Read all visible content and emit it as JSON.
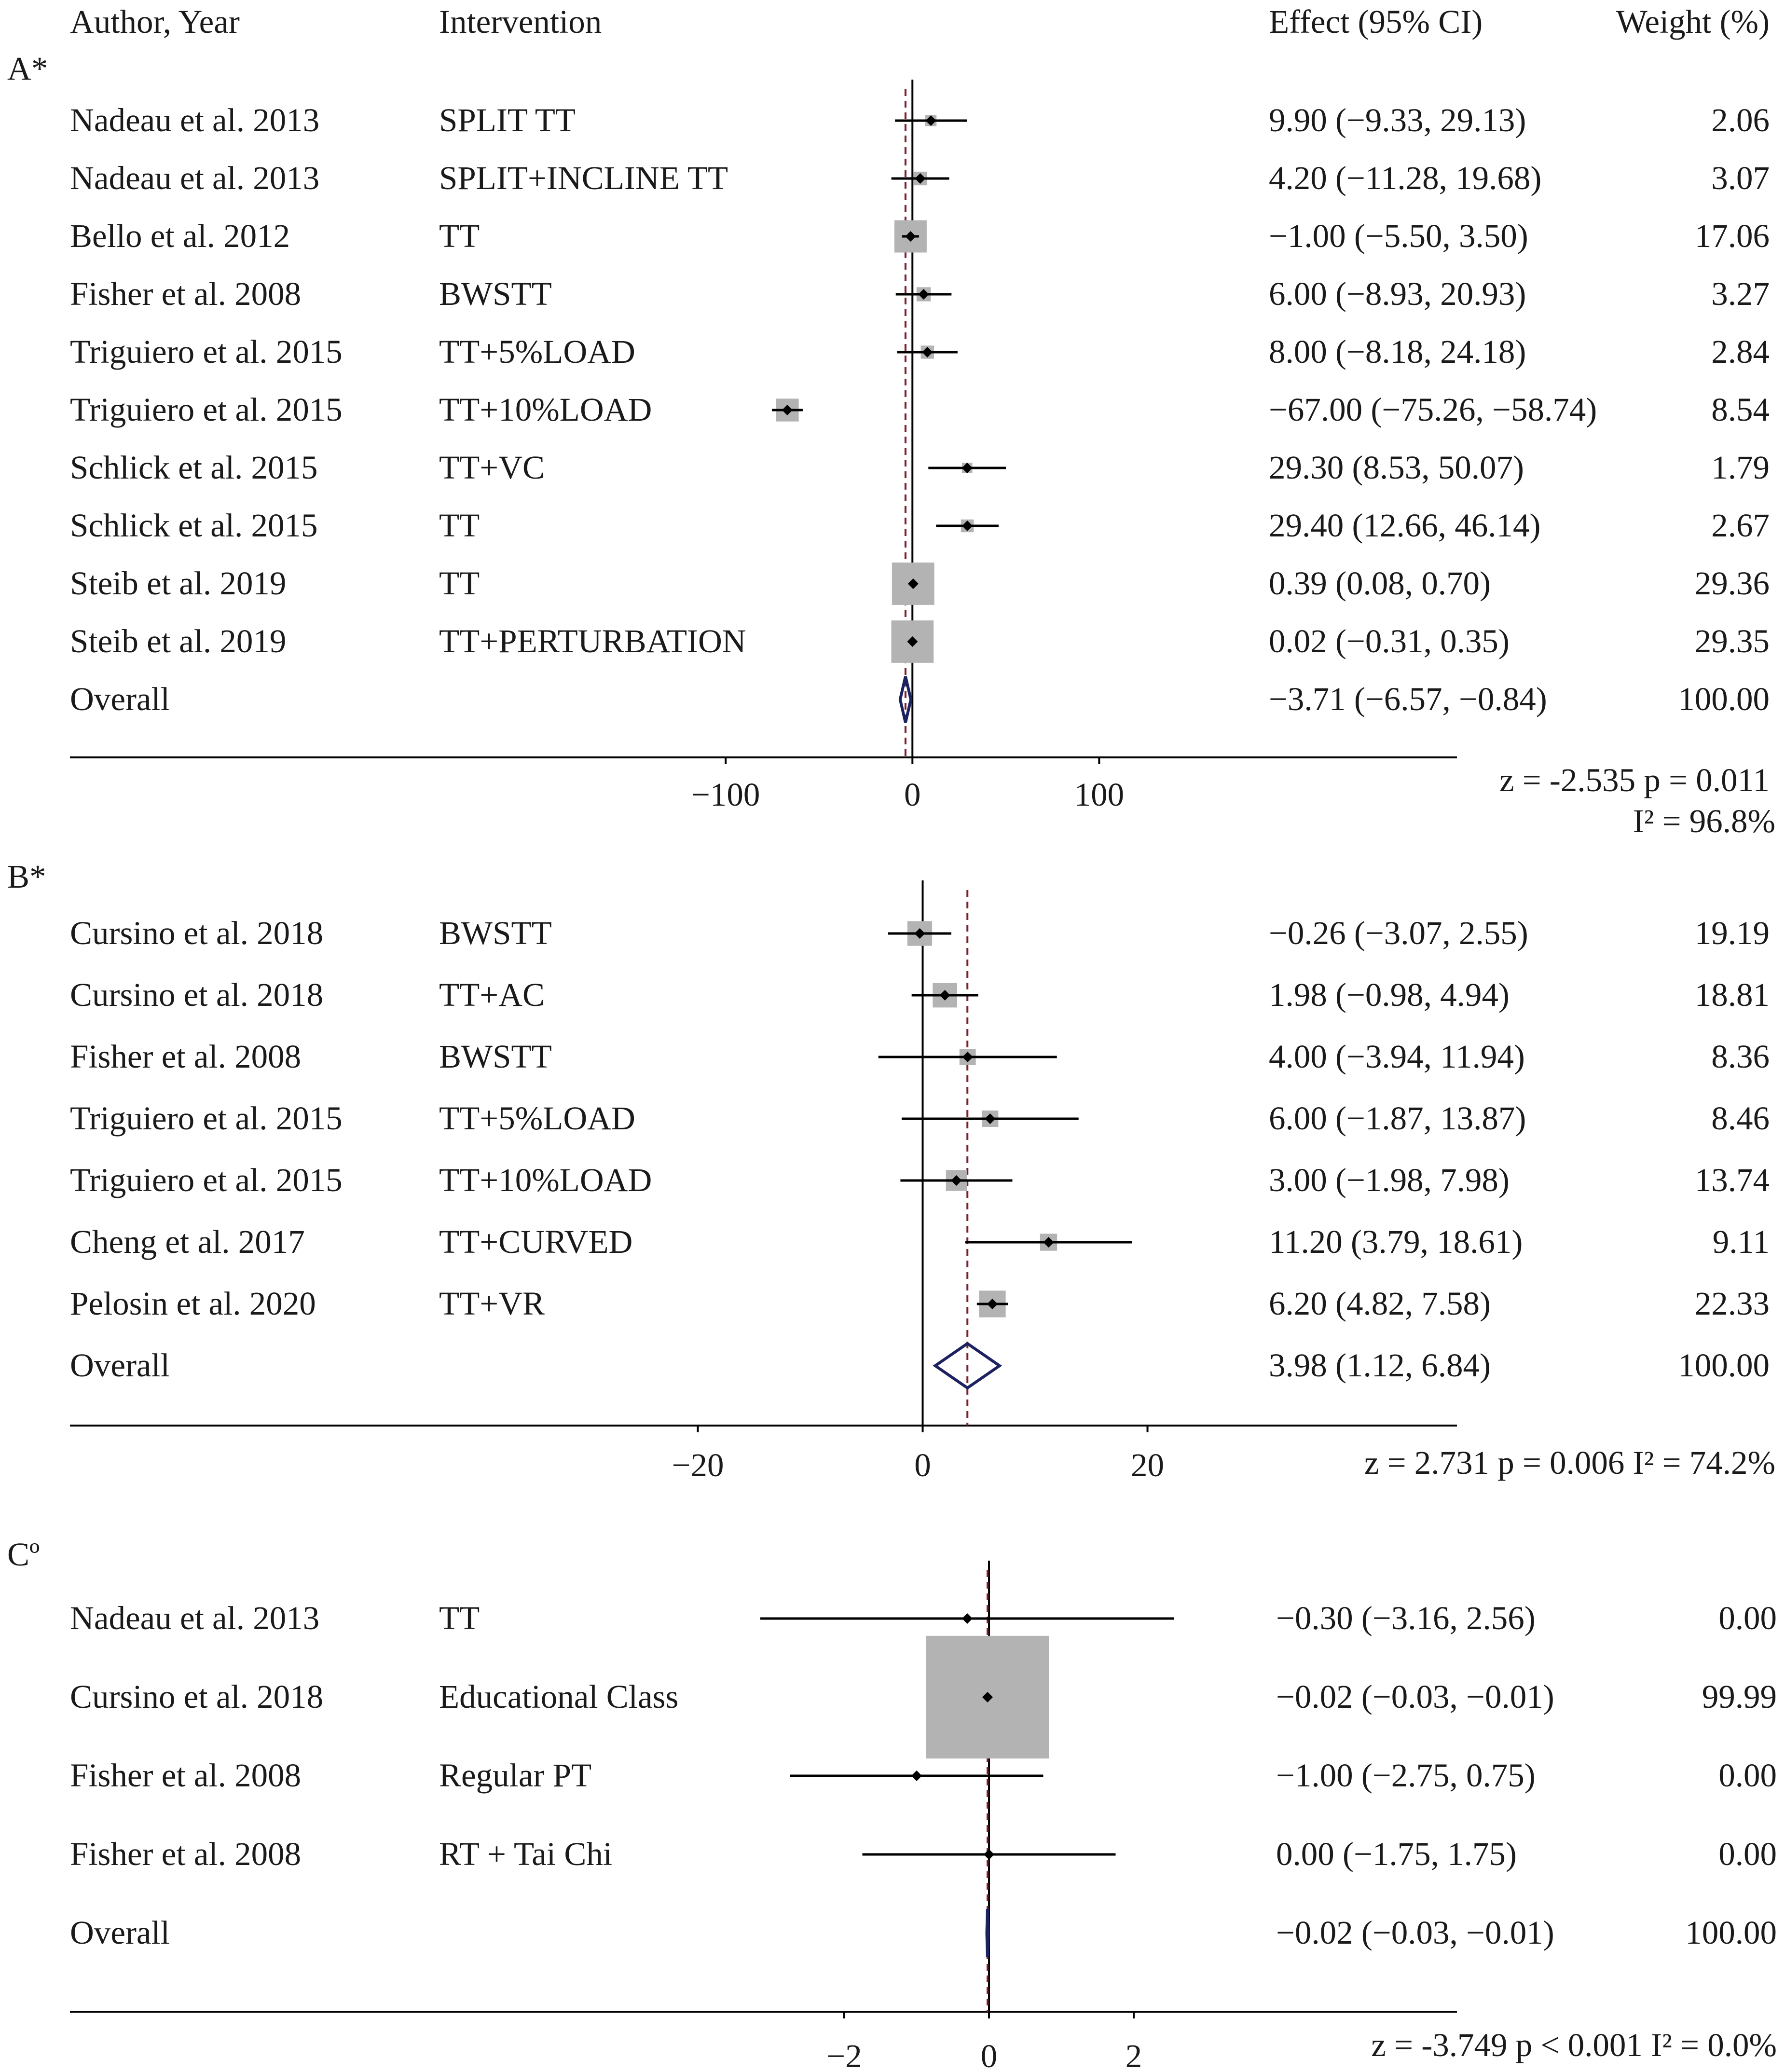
{
  "header": {
    "author": "Author, Year",
    "intervention": "Intervention",
    "effect": "Effect (95% CI)",
    "weight": "Weight (%)"
  },
  "colors": {
    "box": "#b3b3b3",
    "line": "#000000",
    "reference": "#7a1f2b",
    "diamond": "#1c2260",
    "text": "#1a1a1a"
  },
  "chart_data": [
    {
      "type": "forest",
      "panel_label": "A*",
      "xlim": [
        -145,
        165
      ],
      "xticks": [
        {
          "value": -100,
          "label": "−100"
        },
        {
          "value": 0,
          "label": "0"
        },
        {
          "value": 100,
          "label": "100"
        }
      ],
      "stats_lines": [
        "z =  -2.535  p = 0.011",
        "I² = 96.8%"
      ],
      "studies": [
        {
          "author": "Nadeau et al. 2013",
          "intervention": "SPLIT TT",
          "effect": 9.9,
          "lower": -9.33,
          "upper": 29.13,
          "weight": 2.06,
          "effect_text": "9.90 (−9.33, 29.13)",
          "weight_text": "2.06"
        },
        {
          "author": "Nadeau et al. 2013",
          "intervention": "SPLIT+INCLINE TT",
          "effect": 4.2,
          "lower": -11.28,
          "upper": 19.68,
          "weight": 3.07,
          "effect_text": "4.20 (−11.28, 19.68)",
          "weight_text": "3.07"
        },
        {
          "author": "Bello et al. 2012",
          "intervention": "TT",
          "effect": -1.0,
          "lower": -5.5,
          "upper": 3.5,
          "weight": 17.06,
          "effect_text": "−1.00 (−5.50, 3.50)",
          "weight_text": "17.06"
        },
        {
          "author": "Fisher et al. 2008",
          "intervention": "BWSTT",
          "effect": 6.0,
          "lower": -8.93,
          "upper": 20.93,
          "weight": 3.27,
          "effect_text": "6.00 (−8.93, 20.93)",
          "weight_text": "3.27"
        },
        {
          "author": "Triguiero et al. 2015",
          "intervention": "TT+5%LOAD",
          "effect": 8.0,
          "lower": -8.18,
          "upper": 24.18,
          "weight": 2.84,
          "effect_text": "8.00 (−8.18, 24.18)",
          "weight_text": "2.84"
        },
        {
          "author": "Triguiero et al. 2015",
          "intervention": "TT+10%LOAD",
          "effect": -67.0,
          "lower": -75.26,
          "upper": -58.74,
          "weight": 8.54,
          "effect_text": "−67.00 (−75.26, −58.74)",
          "weight_text": "8.54"
        },
        {
          "author": "Schlick et al. 2015",
          "intervention": "TT+VC",
          "effect": 29.3,
          "lower": 8.53,
          "upper": 50.07,
          "weight": 1.79,
          "effect_text": "29.30 (8.53, 50.07)",
          "weight_text": "1.79"
        },
        {
          "author": "Schlick et al. 2015",
          "intervention": "TT",
          "effect": 29.4,
          "lower": 12.66,
          "upper": 46.14,
          "weight": 2.67,
          "effect_text": "29.40 (12.66, 46.14)",
          "weight_text": "2.67"
        },
        {
          "author": "Steib et al. 2019",
          "intervention": "TT",
          "effect": 0.39,
          "lower": 0.08,
          "upper": 0.7,
          "weight": 29.36,
          "effect_text": "0.39 (0.08, 0.70)",
          "weight_text": "29.36"
        },
        {
          "author": "Steib et al. 2019",
          "intervention": "TT+PERTURBATION",
          "effect": 0.02,
          "lower": -0.31,
          "upper": 0.35,
          "weight": 29.35,
          "effect_text": "0.02 (−0.31, 0.35)",
          "weight_text": "29.35"
        }
      ],
      "overall": {
        "label": "Overall",
        "effect": -3.71,
        "lower": -6.57,
        "upper": -0.84,
        "effect_text": "−3.71 (−6.57, −0.84)",
        "weight_text": "100.00"
      }
    },
    {
      "type": "forest",
      "panel_label": "B*",
      "xlim": [
        -25,
        26.5
      ],
      "xticks": [
        {
          "value": -20,
          "label": "−20"
        },
        {
          "value": 0,
          "label": "0"
        },
        {
          "value": 20,
          "label": "20"
        }
      ],
      "stats_lines": [
        "z =   2.731  p = 0.006  I²  = 74.2%"
      ],
      "studies": [
        {
          "author": "Cursino et al. 2018",
          "intervention": "BWSTT",
          "effect": -0.26,
          "lower": -3.07,
          "upper": 2.55,
          "weight": 19.19,
          "effect_text": "−0.26 (−3.07, 2.55)",
          "weight_text": "19.19"
        },
        {
          "author": "Cursino et al. 2018",
          "intervention": "TT+AC",
          "effect": 1.98,
          "lower": -0.98,
          "upper": 4.94,
          "weight": 18.81,
          "effect_text": "1.98 (−0.98, 4.94)",
          "weight_text": "18.81"
        },
        {
          "author": "Fisher et al. 2008",
          "intervention": "BWSTT",
          "effect": 4.0,
          "lower": -3.94,
          "upper": 11.94,
          "weight": 8.36,
          "effect_text": "4.00 (−3.94, 11.94)",
          "weight_text": "8.36"
        },
        {
          "author": "Triguiero et al. 2015",
          "intervention": "TT+5%LOAD",
          "effect": 6.0,
          "lower": -1.87,
          "upper": 13.87,
          "weight": 8.46,
          "effect_text": "6.00 (−1.87, 13.87)",
          "weight_text": "8.46"
        },
        {
          "author": "Triguiero et al. 2015",
          "intervention": "TT+10%LOAD",
          "effect": 3.0,
          "lower": -1.98,
          "upper": 7.98,
          "weight": 13.74,
          "effect_text": "3.00 (−1.98, 7.98)",
          "weight_text": "13.74"
        },
        {
          "author": "Cheng et al. 2017",
          "intervention": "TT+CURVED",
          "effect": 11.2,
          "lower": 3.79,
          "upper": 18.61,
          "weight": 9.11,
          "effect_text": "11.20 (3.79, 18.61)",
          "weight_text": "9.11"
        },
        {
          "author": "Pelosin et al. 2020",
          "intervention": "TT+VR",
          "effect": 6.2,
          "lower": 4.82,
          "upper": 7.58,
          "weight": 22.33,
          "effect_text": "6.20 (4.82, 7.58)",
          "weight_text": "22.33"
        }
      ],
      "overall": {
        "label": "Overall",
        "effect": 3.98,
        "lower": 1.12,
        "upper": 6.84,
        "effect_text": "3.98 (1.12, 6.84)",
        "weight_text": "100.00"
      }
    },
    {
      "type": "forest",
      "panel_label": "Cº",
      "xlim": [
        -4.8,
        3.2
      ],
      "xticks": [
        {
          "value": -2,
          "label": "−2"
        },
        {
          "value": 0,
          "label": "0"
        },
        {
          "value": 2,
          "label": "2"
        }
      ],
      "stats_lines": [
        "z =   -3.749  p < 0.001  I²  =  0.0%"
      ],
      "studies": [
        {
          "author": "Nadeau et al. 2013",
          "intervention": "TT",
          "effect": -0.3,
          "lower": -3.16,
          "upper": 2.56,
          "weight": 0.0,
          "effect_text": "−0.30 (−3.16, 2.56)",
          "weight_text": "0.00"
        },
        {
          "author": "Cursino et al. 2018",
          "intervention": "Educational Class",
          "effect": -0.02,
          "lower": -0.03,
          "upper": -0.01,
          "weight": 99.99,
          "effect_text": "−0.02 (−0.03, −0.01)",
          "weight_text": "99.99"
        },
        {
          "author": "Fisher et al. 2008",
          "intervention": "Regular PT",
          "effect": -1.0,
          "lower": -2.75,
          "upper": 0.75,
          "weight": 0.0,
          "effect_text": "−1.00 (−2.75, 0.75)",
          "weight_text": "0.00"
        },
        {
          "author": "Fisher et al. 2008",
          "intervention": "RT + Tai Chi",
          "effect": 0.0,
          "lower": -1.75,
          "upper": 1.75,
          "weight": 0.0,
          "effect_text": "0.00 (−1.75, 1.75)",
          "weight_text": "0.00"
        }
      ],
      "overall": {
        "label": "Overall",
        "effect": -0.02,
        "lower": -0.03,
        "upper": -0.01,
        "effect_text": "−0.02 (−0.03, −0.01)",
        "weight_text": "100.00"
      }
    }
  ]
}
